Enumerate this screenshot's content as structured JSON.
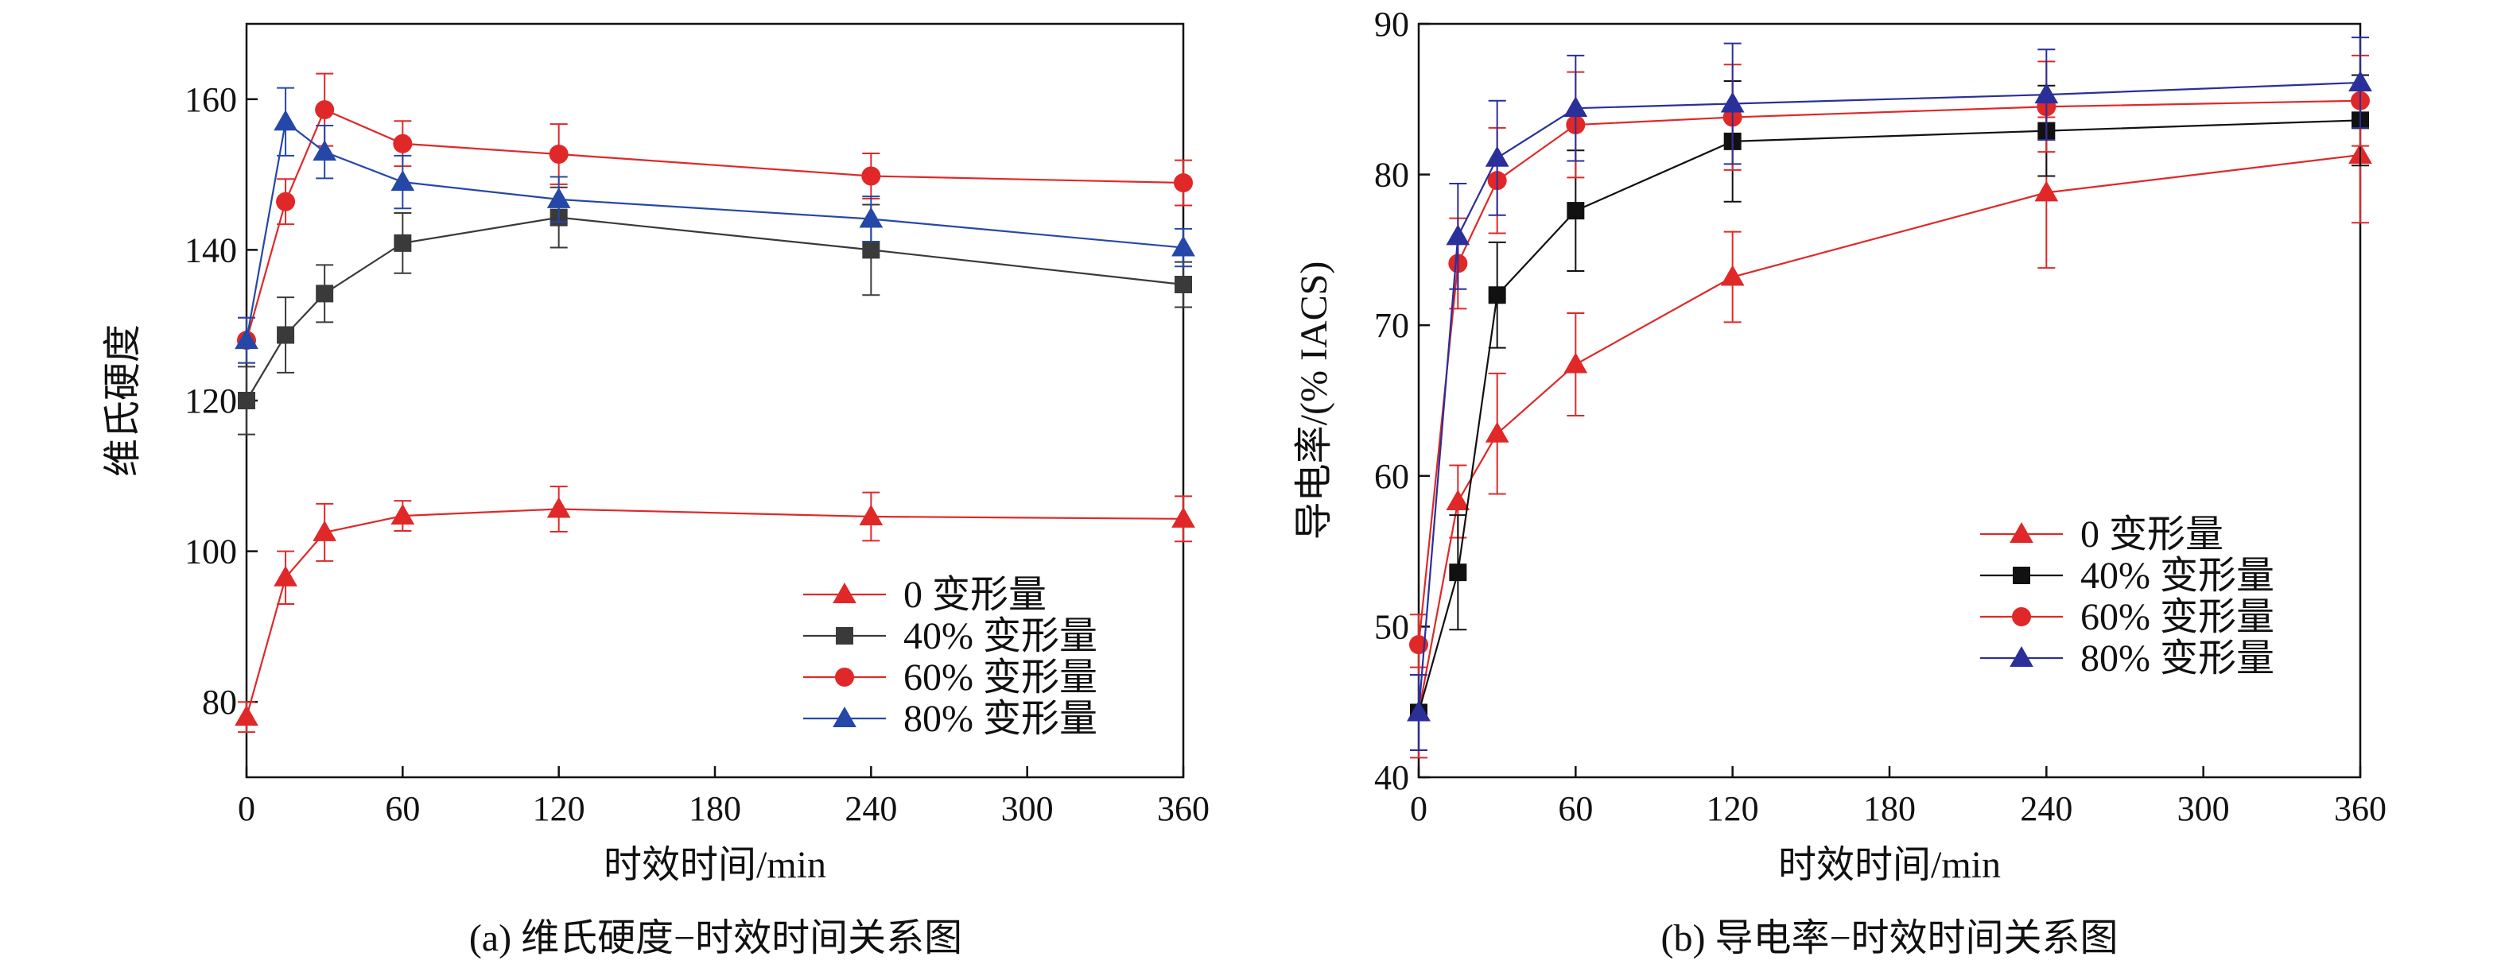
{
  "chart_data": [
    {
      "type": "line",
      "caption": "(a) 维氏硬度−时效时间关系图",
      "xlabel": "时效时间/min",
      "ylabel": "维氏硬度",
      "xlim": [
        0,
        360
      ],
      "ylim": [
        70,
        170
      ],
      "xticks": [
        0,
        60,
        120,
        180,
        240,
        300,
        360
      ],
      "yticks": [
        80,
        100,
        120,
        140,
        160
      ],
      "legend_position": "bottom-right",
      "grid": false,
      "error_bars": true,
      "series": [
        {
          "name": "0 变形量",
          "marker": "triangle",
          "color": "#e02828",
          "x": [
            0,
            15,
            30,
            60,
            120,
            240,
            360
          ],
          "y": [
            78,
            96.5,
            102.5,
            104.7,
            105.6,
            104.6,
            104.3
          ],
          "err": [
            2,
            3.5,
            3.8,
            2,
            3,
            3.2,
            3
          ]
        },
        {
          "name": "40% 变形量",
          "marker": "square",
          "color": "#3a3a3a",
          "x": [
            0,
            15,
            30,
            60,
            120,
            240,
            360
          ],
          "y": [
            120,
            128.7,
            134.2,
            140.9,
            144.3,
            140,
            135.4
          ],
          "err": [
            4.5,
            5,
            3.8,
            4,
            4,
            6,
            3
          ]
        },
        {
          "name": "60% 变形量",
          "marker": "circle",
          "color": "#e02828",
          "x": [
            0,
            15,
            30,
            60,
            120,
            240,
            360
          ],
          "y": [
            128,
            146.4,
            158.6,
            154.1,
            152.7,
            149.8,
            148.9
          ],
          "err": [
            3,
            3,
            4.8,
            3,
            4,
            3,
            3
          ]
        },
        {
          "name": "80% 变形量",
          "marker": "triangle",
          "color": "#2548a8",
          "x": [
            0,
            15,
            30,
            60,
            120,
            240,
            360
          ],
          "y": [
            128,
            157,
            153,
            149,
            146.7,
            144.1,
            140.3
          ],
          "err": [
            3,
            4.5,
            3.5,
            3.5,
            3,
            3,
            2.5
          ]
        }
      ]
    },
    {
      "type": "line",
      "caption": "(b) 导电率−时效时间关系图",
      "xlabel": "时效时间/min",
      "ylabel": "导电率/(% IACS)",
      "xlim": [
        0,
        360
      ],
      "ylim": [
        40,
        90
      ],
      "xticks": [
        0,
        60,
        120,
        180,
        240,
        300,
        360
      ],
      "yticks": [
        40,
        50,
        60,
        70,
        80,
        90
      ],
      "legend_position": "middle-right",
      "grid": false,
      "error_bars": true,
      "series": [
        {
          "name": "0 变形量",
          "marker": "triangle",
          "color": "#e02828",
          "x": [
            0,
            15,
            30,
            60,
            120,
            240,
            360
          ],
          "y": [
            44.3,
            58.3,
            62.8,
            67.4,
            73.2,
            78.8,
            81.3
          ],
          "err": [
            3,
            2.4,
            4,
            3.4,
            3,
            5,
            4.5
          ]
        },
        {
          "name": "40% 变形量",
          "marker": "square",
          "color": "#111111",
          "x": [
            0,
            15,
            30,
            60,
            120,
            240,
            360
          ],
          "y": [
            44.3,
            53.6,
            72,
            77.6,
            82.2,
            82.9,
            83.6
          ],
          "err": [
            2.5,
            3.8,
            3.5,
            4,
            4,
            3,
            3
          ]
        },
        {
          "name": "60% 变形量",
          "marker": "circle",
          "color": "#e02828",
          "x": [
            0,
            15,
            30,
            60,
            120,
            240,
            360
          ],
          "y": [
            48.8,
            74.1,
            79.6,
            83.3,
            83.8,
            84.5,
            84.9
          ],
          "err": [
            2,
            3,
            3.5,
            3.5,
            3.5,
            3,
            3
          ]
        },
        {
          "name": "80% 变形量",
          "marker": "triangle",
          "color": "#2a2f9a",
          "x": [
            0,
            15,
            30,
            60,
            120,
            240,
            360
          ],
          "y": [
            44.3,
            75.9,
            81.1,
            84.4,
            84.7,
            85.3,
            86.1
          ],
          "err": [
            2.5,
            3.5,
            3.8,
            3.5,
            4,
            3,
            3
          ]
        }
      ]
    }
  ]
}
